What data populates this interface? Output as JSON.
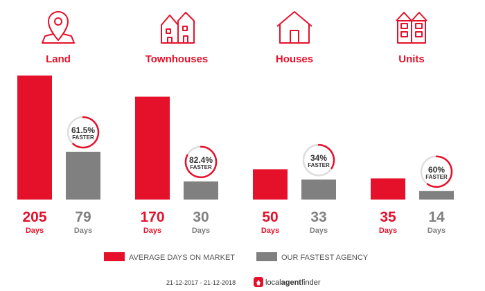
{
  "colors": {
    "market": "#e5112b",
    "agency": "#808080",
    "badge_ring": "#e5112b",
    "badge_track": "#dddddd"
  },
  "icons": [
    "map-pin-icon",
    "townhouses-icon",
    "house-icon",
    "units-icon"
  ],
  "chart_data": {
    "type": "bar",
    "categories": [
      "Land",
      "Townhouses",
      "Houses",
      "Units"
    ],
    "unit_label": "Days",
    "series": [
      {
        "name": "AVERAGE DAYS ON MARKET",
        "values": [
          205,
          170,
          50,
          35
        ]
      },
      {
        "name": "OUR FASTEST AGENCY",
        "values": [
          79,
          30,
          33,
          14
        ]
      }
    ],
    "faster_pct": [
      61.5,
      82.4,
      34,
      60
    ],
    "faster_labels": [
      "61.5%",
      "82.4%",
      "34%",
      "60%"
    ],
    "faster_word": "FASTER",
    "ylim": [
      0,
      205
    ],
    "legend_position": "bottom"
  },
  "footer": {
    "date_range": "21-12-2017 - 21-12-2018",
    "brand": {
      "part1": "local",
      "part2": "agent",
      "part3": "finder"
    }
  }
}
